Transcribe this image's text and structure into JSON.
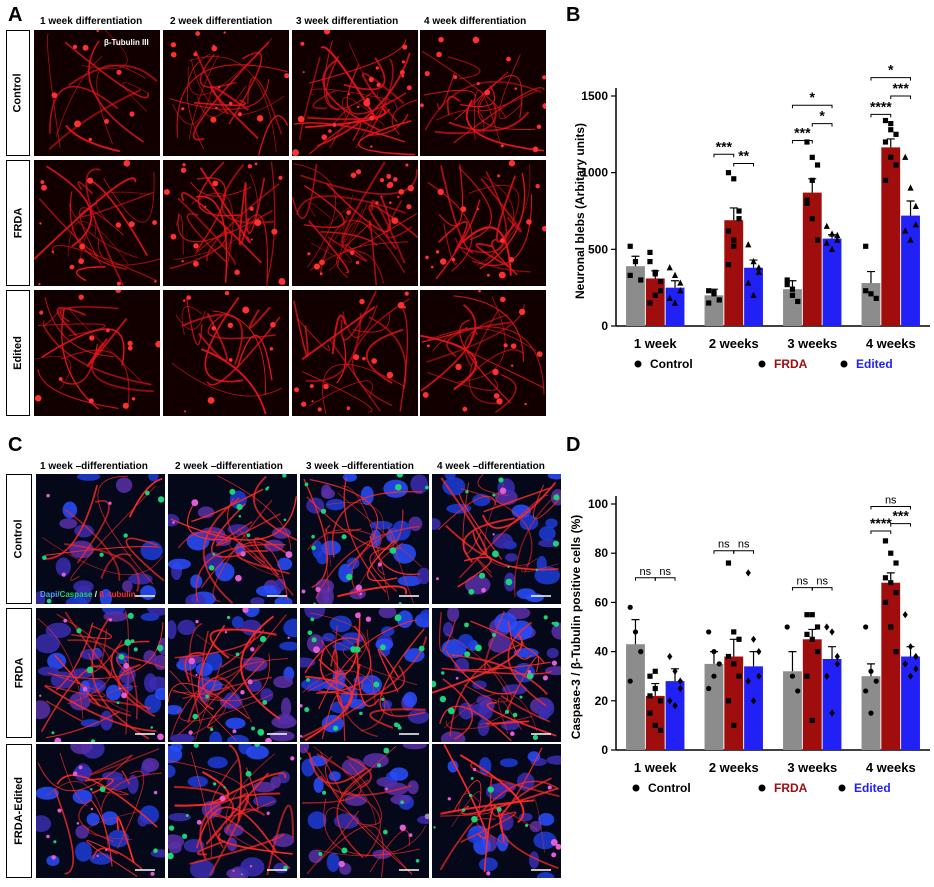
{
  "panel_letters": {
    "a": "A",
    "b": "B",
    "c": "C",
    "d": "D"
  },
  "panel_a": {
    "columns": [
      "1 week differentiation",
      "2 week differentiation",
      "3 week differentiation",
      "4 week differentiation"
    ],
    "rows": [
      "Control",
      "FRDA",
      "Edited"
    ],
    "stain_label": "β-Tubulin III",
    "colors": {
      "neurite": "#e8141b",
      "background": "#0a0000"
    }
  },
  "panel_c": {
    "columns": [
      "1 week  –differentiation",
      "2 week  –differentiation",
      "3 week  –differentiation",
      "4 week  –differentiation"
    ],
    "rows": [
      "Control",
      "FRDA",
      "FRDA-Edited"
    ],
    "stain_label": {
      "dapi": "Dapi/",
      "caspase": "Caspase",
      "sep": " / ",
      "tubulin": "ß -tubulin"
    },
    "colors": {
      "dapi": "#1a5cff",
      "caspase": "#19d27a",
      "tubulin": "#ff2a2a"
    }
  },
  "chart_data": [
    {
      "panel": "B",
      "type": "bar",
      "ylabel": "Neuronal blebs (Arbitary units)",
      "ylim": [
        0,
        1500
      ],
      "yticks": [
        "0",
        "500",
        "1000",
        "1500"
      ],
      "categories": [
        "1 week",
        "2 weeks",
        "3 weeks",
        "4 weeks"
      ],
      "series": [
        {
          "name": "Control",
          "color": "#8c8c8c",
          "marker": "square",
          "values": [
            390,
            200,
            240,
            280
          ],
          "errors": [
            65,
            40,
            55,
            75
          ],
          "points": [
            [
              520,
              420,
              300,
              330
            ],
            [
              230,
              210,
              170,
              150,
              220
            ],
            [
              300,
              200,
              160,
              270,
              240
            ],
            [
              520,
              210,
              180,
              230
            ]
          ]
        },
        {
          "name": "FRDA",
          "color": "#a00d0d",
          "marker": "square",
          "values": [
            310,
            690,
            870,
            1165
          ],
          "errors": [
            50,
            80,
            90,
            55
          ],
          "points": [
            [
              480,
              350,
              230,
              150,
              340,
              290,
              420,
              200
            ],
            [
              1000,
              960,
              750,
              620,
              520,
              700,
              400,
              560
            ],
            [
              1200,
              1100,
              1050,
              800,
              700,
              560,
              820,
              950
            ],
            [
              1340,
              1320,
              1250,
              1200,
              1100,
              1050,
              950,
              1280
            ]
          ]
        },
        {
          "name": "Edited",
          "color": "#2121f5",
          "marker": "triangle",
          "values": [
            250,
            380,
            570,
            720
          ],
          "errors": [
            45,
            50,
            25,
            95
          ],
          "points": [
            [
              380,
              330,
              280,
              180,
              150,
              230
            ],
            [
              530,
              420,
              380,
              280,
              200,
              350
            ],
            [
              650,
              600,
              560,
              540,
              500,
              590
            ],
            [
              1100,
              900,
              780,
              620,
              560,
              660
            ]
          ]
        }
      ],
      "significance": [
        {
          "label": "***",
          "group": 1,
          "from": 0,
          "to": 1,
          "y": 1120
        },
        {
          "label": "**",
          "group": 1,
          "from": 1,
          "to": 2,
          "y": 1060
        },
        {
          "label": "***",
          "group": 2,
          "from": 0,
          "to": 1,
          "y": 1210
        },
        {
          "label": "*",
          "group": 2,
          "from": 1,
          "to": 2,
          "y": 1320
        },
        {
          "label": "*",
          "group": 2,
          "from": 0,
          "to": 2,
          "y": 1440
        },
        {
          "label": "****",
          "group": 3,
          "from": 0,
          "to": 1,
          "y": 1380
        },
        {
          "label": "***",
          "group": 3,
          "from": 1,
          "to": 2,
          "y": 1500
        },
        {
          "label": "*",
          "group": 3,
          "from": 0,
          "to": 2,
          "y": 1620
        }
      ],
      "legend": [
        {
          "label": "Control",
          "color": "#000000"
        },
        {
          "label": "FRDA",
          "color": "#a00d0d"
        },
        {
          "label": "Edited",
          "color": "#2121f5"
        }
      ]
    },
    {
      "panel": "D",
      "type": "bar",
      "ylabel": "Caspase-3 / β-Tubulin positive cells (%)",
      "ylim": [
        0,
        100
      ],
      "yticks": [
        "0",
        "20",
        "40",
        "60",
        "80",
        "100"
      ],
      "categories": [
        "1 week",
        "2 weeks",
        "3 weeks",
        "4 weeks"
      ],
      "series": [
        {
          "name": "Control",
          "color": "#8c8c8c",
          "marker": "circle",
          "values": [
            43,
            35,
            32,
            30
          ],
          "errors": [
            10,
            5,
            8,
            5
          ],
          "points": [
            [
              58,
              48,
              40,
              28
            ],
            [
              48,
              40,
              35,
              25,
              30
            ],
            [
              50,
              30,
              24
            ],
            [
              50,
              32,
              28,
              24,
              15
            ]
          ]
        },
        {
          "name": "FRDA",
          "color": "#a00d0d",
          "marker": "square",
          "values": [
            22,
            38,
            45,
            68
          ],
          "errors": [
            5,
            7,
            4,
            4
          ],
          "points": [
            [
              30,
              25,
              20,
              15,
              10,
              8,
              22,
              32
            ],
            [
              76,
              48,
              45,
              38,
              35,
              30,
              20,
              10
            ],
            [
              55,
              55,
              50,
              47,
              45,
              40,
              30,
              12
            ],
            [
              85,
              80,
              76,
              70,
              68,
              64,
              60,
              50,
              40
            ]
          ]
        },
        {
          "name": "Edited",
          "color": "#2121f5",
          "marker": "diamond",
          "values": [
            28,
            34,
            37,
            38
          ],
          "errors": [
            5,
            6,
            5,
            4
          ],
          "points": [
            [
              38,
              32,
              28,
              20,
              18,
              25
            ],
            [
              72,
              45,
              40,
              28,
              20,
              30
            ],
            [
              50,
              48,
              38,
              30,
              15,
              35
            ],
            [
              55,
              42,
              38,
              35,
              30,
              33
            ]
          ]
        }
      ],
      "significance": [
        {
          "label": "ns",
          "group": 0,
          "from": 0,
          "to": 1,
          "y": 70
        },
        {
          "label": "ns",
          "group": 0,
          "from": 1,
          "to": 2,
          "y": 70
        },
        {
          "label": "ns",
          "group": 1,
          "from": 0,
          "to": 1,
          "y": 81
        },
        {
          "label": "ns",
          "group": 1,
          "from": 1,
          "to": 2,
          "y": 81
        },
        {
          "label": "ns",
          "group": 2,
          "from": 0,
          "to": 1,
          "y": 66
        },
        {
          "label": "ns",
          "group": 2,
          "from": 1,
          "to": 2,
          "y": 66
        },
        {
          "label": "****",
          "group": 3,
          "from": 0,
          "to": 1,
          "y": 89
        },
        {
          "label": "***",
          "group": 3,
          "from": 1,
          "to": 2,
          "y": 92
        },
        {
          "label": "ns",
          "group": 3,
          "from": 0,
          "to": 2,
          "y": 99
        }
      ],
      "legend": [
        {
          "label": "Control",
          "color": "#000000"
        },
        {
          "label": "FRDA",
          "color": "#a00d0d"
        },
        {
          "label": "Edited",
          "color": "#2121f5"
        }
      ]
    }
  ]
}
